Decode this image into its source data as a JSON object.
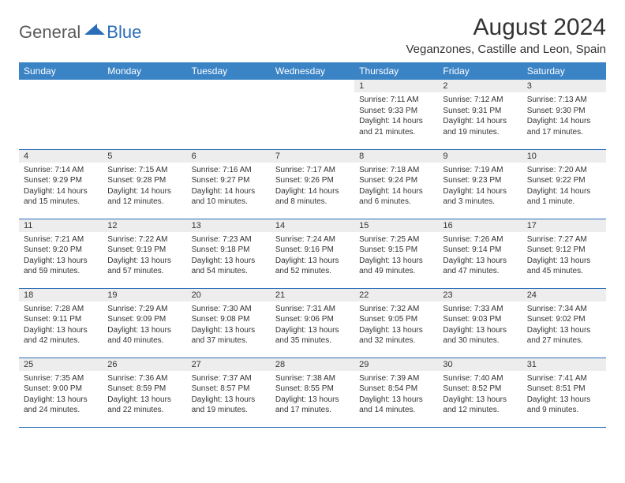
{
  "brand": {
    "general": "General",
    "blue": "Blue"
  },
  "title": "August 2024",
  "location": "Veganzones, Castille and Leon, Spain",
  "colors": {
    "header_bg": "#3a83c5",
    "header_text": "#ffffff",
    "border": "#2a6db8",
    "daynum_bg": "#ededed",
    "text": "#333333",
    "logo_gray": "#5a5a5a",
    "logo_blue": "#2a6db8",
    "background": "#ffffff"
  },
  "typography": {
    "title_fontsize": 30,
    "location_fontsize": 15,
    "header_fontsize": 12,
    "daynum_fontsize": 11,
    "detail_fontsize": 10,
    "logo_fontsize": 22
  },
  "dayNames": [
    "Sunday",
    "Monday",
    "Tuesday",
    "Wednesday",
    "Thursday",
    "Friday",
    "Saturday"
  ],
  "weeks": [
    [
      null,
      null,
      null,
      null,
      {
        "n": "1",
        "sr": "7:11 AM",
        "ss": "9:33 PM",
        "dl": "14 hours and 21 minutes."
      },
      {
        "n": "2",
        "sr": "7:12 AM",
        "ss": "9:31 PM",
        "dl": "14 hours and 19 minutes."
      },
      {
        "n": "3",
        "sr": "7:13 AM",
        "ss": "9:30 PM",
        "dl": "14 hours and 17 minutes."
      }
    ],
    [
      {
        "n": "4",
        "sr": "7:14 AM",
        "ss": "9:29 PM",
        "dl": "14 hours and 15 minutes."
      },
      {
        "n": "5",
        "sr": "7:15 AM",
        "ss": "9:28 PM",
        "dl": "14 hours and 12 minutes."
      },
      {
        "n": "6",
        "sr": "7:16 AM",
        "ss": "9:27 PM",
        "dl": "14 hours and 10 minutes."
      },
      {
        "n": "7",
        "sr": "7:17 AM",
        "ss": "9:26 PM",
        "dl": "14 hours and 8 minutes."
      },
      {
        "n": "8",
        "sr": "7:18 AM",
        "ss": "9:24 PM",
        "dl": "14 hours and 6 minutes."
      },
      {
        "n": "9",
        "sr": "7:19 AM",
        "ss": "9:23 PM",
        "dl": "14 hours and 3 minutes."
      },
      {
        "n": "10",
        "sr": "7:20 AM",
        "ss": "9:22 PM",
        "dl": "14 hours and 1 minute."
      }
    ],
    [
      {
        "n": "11",
        "sr": "7:21 AM",
        "ss": "9:20 PM",
        "dl": "13 hours and 59 minutes."
      },
      {
        "n": "12",
        "sr": "7:22 AM",
        "ss": "9:19 PM",
        "dl": "13 hours and 57 minutes."
      },
      {
        "n": "13",
        "sr": "7:23 AM",
        "ss": "9:18 PM",
        "dl": "13 hours and 54 minutes."
      },
      {
        "n": "14",
        "sr": "7:24 AM",
        "ss": "9:16 PM",
        "dl": "13 hours and 52 minutes."
      },
      {
        "n": "15",
        "sr": "7:25 AM",
        "ss": "9:15 PM",
        "dl": "13 hours and 49 minutes."
      },
      {
        "n": "16",
        "sr": "7:26 AM",
        "ss": "9:14 PM",
        "dl": "13 hours and 47 minutes."
      },
      {
        "n": "17",
        "sr": "7:27 AM",
        "ss": "9:12 PM",
        "dl": "13 hours and 45 minutes."
      }
    ],
    [
      {
        "n": "18",
        "sr": "7:28 AM",
        "ss": "9:11 PM",
        "dl": "13 hours and 42 minutes."
      },
      {
        "n": "19",
        "sr": "7:29 AM",
        "ss": "9:09 PM",
        "dl": "13 hours and 40 minutes."
      },
      {
        "n": "20",
        "sr": "7:30 AM",
        "ss": "9:08 PM",
        "dl": "13 hours and 37 minutes."
      },
      {
        "n": "21",
        "sr": "7:31 AM",
        "ss": "9:06 PM",
        "dl": "13 hours and 35 minutes."
      },
      {
        "n": "22",
        "sr": "7:32 AM",
        "ss": "9:05 PM",
        "dl": "13 hours and 32 minutes."
      },
      {
        "n": "23",
        "sr": "7:33 AM",
        "ss": "9:03 PM",
        "dl": "13 hours and 30 minutes."
      },
      {
        "n": "24",
        "sr": "7:34 AM",
        "ss": "9:02 PM",
        "dl": "13 hours and 27 minutes."
      }
    ],
    [
      {
        "n": "25",
        "sr": "7:35 AM",
        "ss": "9:00 PM",
        "dl": "13 hours and 24 minutes."
      },
      {
        "n": "26",
        "sr": "7:36 AM",
        "ss": "8:59 PM",
        "dl": "13 hours and 22 minutes."
      },
      {
        "n": "27",
        "sr": "7:37 AM",
        "ss": "8:57 PM",
        "dl": "13 hours and 19 minutes."
      },
      {
        "n": "28",
        "sr": "7:38 AM",
        "ss": "8:55 PM",
        "dl": "13 hours and 17 minutes."
      },
      {
        "n": "29",
        "sr": "7:39 AM",
        "ss": "8:54 PM",
        "dl": "13 hours and 14 minutes."
      },
      {
        "n": "30",
        "sr": "7:40 AM",
        "ss": "8:52 PM",
        "dl": "13 hours and 12 minutes."
      },
      {
        "n": "31",
        "sr": "7:41 AM",
        "ss": "8:51 PM",
        "dl": "13 hours and 9 minutes."
      }
    ]
  ],
  "labels": {
    "sunrise": "Sunrise:",
    "sunset": "Sunset:",
    "daylight": "Daylight:"
  }
}
